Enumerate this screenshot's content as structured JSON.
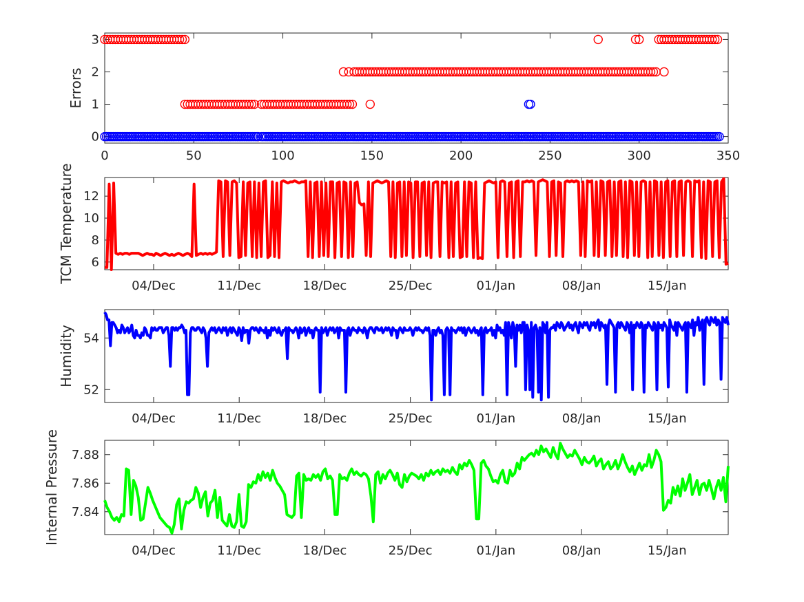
{
  "chart_data": [
    {
      "type": "scatter",
      "xlabel": "",
      "ylabel": "Errors",
      "xlim": [
        0,
        350
      ],
      "ylim": [
        -0.2,
        3.2
      ],
      "xticks": [
        0,
        50,
        100,
        150,
        200,
        250,
        300,
        350
      ],
      "yticks": [
        0,
        1,
        2,
        3
      ],
      "marker": "circle",
      "series": [
        {
          "color": "#ff0000",
          "segments": [
            {
              "x_start": 0,
              "x_end": 45,
              "step": 1.5,
              "y": 3
            },
            {
              "x_start": 45,
              "x_end": 85,
              "step": 1.5,
              "y": 1
            },
            {
              "x_start": 88,
              "x_end": 140,
              "step": 1.5,
              "y": 1
            },
            {
              "x_start": 140,
              "x_end": 310,
              "step": 1.5,
              "y": 2
            },
            {
              "x_start": 311,
              "x_end": 344,
              "step": 1.5,
              "y": 3
            }
          ],
          "points": [
            {
              "x": 134,
              "y": 2
            },
            {
              "x": 137,
              "y": 2
            },
            {
              "x": 149,
              "y": 1
            },
            {
              "x": 277,
              "y": 3
            },
            {
              "x": 298,
              "y": 3
            },
            {
              "x": 300,
              "y": 3
            },
            {
              "x": 314,
              "y": 2
            },
            {
              "x": 1,
              "y": 0
            },
            {
              "x": 86,
              "y": 0
            }
          ]
        },
        {
          "color": "#0000ff",
          "segments": [
            {
              "x_start": 0,
              "x_end": 86,
              "step": 1.0,
              "y": 0
            },
            {
              "x_start": 88,
              "x_end": 345,
              "step": 1.0,
              "y": 0
            }
          ],
          "points": [
            {
              "x": 238,
              "y": 1
            },
            {
              "x": 239,
              "y": 1
            }
          ]
        }
      ]
    },
    {
      "type": "line",
      "ylabel": "TCM Temperature",
      "color": "#ff0000",
      "x_date_range": [
        "2017-11-30",
        "2018-01-20"
      ],
      "xlim": [
        "2017-11-30",
        "2018-01-20"
      ],
      "ylim": [
        5.3,
        13.7
      ],
      "yticks": [
        6,
        8,
        10,
        12
      ],
      "xticks": [
        "04/Dec",
        "11/Dec",
        "18/Dec",
        "25/Dec",
        "01/Jan",
        "08/Jan",
        "15/Jan"
      ],
      "values": [
        5.5,
        5.5,
        13.1,
        5.3,
        13.2,
        6.8,
        6.7,
        6.8,
        6.7,
        6.8,
        6.8,
        6.7,
        6.8,
        6.8,
        6.8,
        6.8,
        6.7,
        6.6,
        6.7,
        6.8,
        6.7,
        6.7,
        6.6,
        6.8,
        6.7,
        6.6,
        6.7,
        6.8,
        6.7,
        6.6,
        6.7,
        6.6,
        6.7,
        6.8,
        6.7,
        6.6,
        6.7,
        6.8,
        6.7,
        6.5,
        13.1,
        6.6,
        6.7,
        6.8,
        6.7,
        6.8,
        6.7,
        6.8,
        6.7,
        6.8,
        6.9,
        13.4,
        13.3,
        6.5,
        13.4,
        13.3,
        6.6,
        13.3,
        13.4,
        13.2,
        6.4,
        6.5,
        13.3,
        6.6,
        13.2,
        13.3,
        6.5,
        13.3,
        6.4,
        13.2,
        6.5,
        13.3,
        13.4,
        6.4,
        6.6,
        13.3,
        6.5,
        13.2,
        6.4,
        13.3,
        13.4,
        13.3,
        13.2,
        13.3,
        13.3,
        13.4,
        13.3,
        13.2,
        13.3,
        13.3,
        13.4,
        6.5,
        13.3,
        6.4,
        13.2,
        13.3,
        6.5,
        13.3,
        6.6,
        13.2,
        6.5,
        13.3,
        13.3,
        6.4,
        13.2,
        13.3,
        6.5,
        13.3,
        13.2,
        6.4,
        13.3,
        6.5,
        13.2,
        13.3,
        11.4,
        11.2,
        11.3,
        6.6,
        13.3,
        6.5,
        13.2,
        13.3,
        13.4,
        13.3,
        13.2,
        13.3,
        13.4,
        13.3,
        6.5,
        13.3,
        6.4,
        13.2,
        13.3,
        6.5,
        13.3,
        6.6,
        13.3,
        13.2,
        6.4,
        13.3,
        13.3,
        6.5,
        13.2,
        13.3,
        6.6,
        13.3,
        6.4,
        13.2,
        13.3,
        13.3,
        6.5,
        13.3,
        13.2,
        13.3,
        6.4,
        13.3,
        6.5,
        13.2,
        13.3,
        6.4,
        6.5,
        13.3,
        6.5,
        13.3,
        13.2,
        6.4,
        13.3,
        6.3,
        6.4,
        6.3,
        13.2,
        13.3,
        13.4,
        13.3,
        13.2,
        13.3,
        6.4,
        13.3,
        13.4,
        13.3,
        6.5,
        13.2,
        13.3,
        6.4,
        13.3,
        13.4,
        6.5,
        13.3,
        13.3,
        13.4,
        13.3,
        13.4,
        13.3,
        6.6,
        13.3,
        13.4,
        13.5,
        13.4,
        13.3,
        6.5,
        13.3,
        13.4,
        6.6,
        13.3,
        13.2,
        6.5,
        13.3,
        13.4,
        13.3,
        13.4,
        13.3,
        13.4,
        13.3,
        6.6,
        13.3,
        6.5,
        13.4,
        13.3,
        13.4,
        6.6,
        13.3,
        6.5,
        13.4,
        13.3,
        6.6,
        13.3,
        13.4,
        6.5,
        13.3,
        6.6,
        13.3,
        13.4,
        6.5,
        13.3,
        6.4,
        13.4,
        13.3,
        6.6,
        13.3,
        6.5,
        13.3,
        13.4,
        13.3,
        6.4,
        13.3,
        6.5,
        13.4,
        13.3,
        6.6,
        13.3,
        6.4,
        13.3,
        13.4,
        6.5,
        13.3,
        13.4,
        6.5,
        13.3,
        13.4,
        6.6,
        13.3,
        13.4,
        13.3,
        6.5,
        13.4,
        13.3,
        13.4,
        6.4,
        13.3,
        6.3,
        13.4,
        13.3,
        6.5,
        13.3,
        13.4,
        6.4,
        13.3,
        13.6,
        5.8,
        5.9
      ]
    },
    {
      "type": "line",
      "ylabel": "Humidity",
      "color": "#0000ff",
      "x_date_range": [
        "2017-11-30",
        "2018-01-20"
      ],
      "xlim": [
        "2017-11-30",
        "2018-01-20"
      ],
      "ylim": [
        51.5,
        55.1
      ],
      "yticks": [
        52,
        54
      ],
      "xticks": [
        "04/Dec",
        "11/Dec",
        "18/Dec",
        "25/Dec",
        "01/Jan",
        "08/Jan",
        "15/Jan"
      ],
      "values": [
        55.0,
        54.9,
        54.7,
        54.7,
        53.7,
        54.6,
        54.6,
        54.5,
        54.4,
        54.2,
        54.3,
        54.2,
        54.5,
        54.4,
        54.2,
        54.3,
        54.4,
        54.2,
        54.3,
        54.5,
        54.1,
        54.0,
        54.3,
        54.1,
        54.1,
        54.0,
        54.2,
        54.1,
        54.4,
        54.3,
        54.1,
        54.1,
        54.0,
        54.4,
        54.3,
        54.4,
        54.3,
        54.3,
        54.4,
        54.4,
        54.4,
        54.2,
        54.3,
        54.4,
        54.4,
        54.1,
        52.9,
        54.4,
        54.4,
        54.3,
        54.4,
        54.3,
        54.4,
        54.4,
        54.5,
        54.4,
        54.2,
        54.3,
        51.8,
        51.8,
        54.2,
        54.4,
        54.4,
        54.3,
        54.3,
        54.4,
        54.4,
        54.3,
        54.2,
        54.4,
        54.3,
        54.0,
        52.9,
        54.2,
        54.3,
        54.4,
        54.3,
        54.4,
        54.2,
        54.3,
        54.4,
        54.3,
        54.2,
        54.4,
        54.3,
        54.4,
        54.1,
        54.3,
        54.4,
        54.2,
        54.4,
        54.3,
        54.2,
        54.1,
        54.4,
        54.3,
        53.9,
        54.4,
        54.2,
        54.3,
        54.3,
        53.8,
        54.3,
        54.4,
        54.4,
        54.3,
        54.4,
        54.3,
        54.2,
        54.4,
        54.3,
        54.3,
        54.2,
        54.4,
        54.0,
        54.3,
        54.1,
        54.4,
        54.3,
        54.4,
        54.3,
        54.2,
        54.4,
        54.2,
        54.1,
        54.3,
        54.3,
        54.4,
        53.2,
        54.4,
        54.3,
        54.3,
        54.2,
        54.3,
        54.4,
        54.3,
        54.0,
        54.4,
        54.2,
        54.3,
        54.4,
        54.1,
        54.3,
        54.4,
        54.2,
        54.3,
        54.0,
        54.3,
        54.4,
        54.3,
        54.3,
        51.9,
        54.4,
        54.2,
        54.3,
        54.4,
        54.1,
        54.3,
        54.4,
        54.3,
        54.4,
        54.2,
        54.3,
        54.4,
        54.0,
        54.4,
        54.3,
        54.3,
        54.3,
        51.9,
        54.3,
        54.4,
        54.1,
        54.3,
        54.4,
        54.3,
        54.3,
        54.2,
        54.4,
        54.3,
        54.3,
        54.2,
        54.4,
        54.3,
        54.0,
        54.3,
        54.4,
        54.4,
        54.3,
        54.2,
        54.4,
        54.4,
        54.3,
        54.3,
        54.4,
        54.2,
        54.3,
        54.4,
        54.3,
        54.4,
        54.3,
        54.1,
        54.4,
        54.3,
        54.3,
        54.0,
        54.3,
        54.4,
        54.3,
        54.2,
        54.4,
        54.3,
        54.3,
        54.3,
        54.4,
        54.3,
        54.1,
        54.3,
        54.4,
        54.3,
        54.4,
        54.3,
        54.3,
        54.2,
        54.3,
        54.4,
        54.3,
        54.4,
        54.1,
        51.6,
        54.3,
        54.3,
        54.1,
        54.3,
        54.4,
        54.2,
        54.3,
        54.1,
        51.8,
        54.3,
        54.4,
        54.3,
        51.8,
        54.4,
        54.3,
        54.3,
        54.2,
        54.3,
        54.4,
        54.3,
        54.4,
        54.2,
        54.4,
        54.1,
        54.3,
        54.4,
        54.3,
        54.2,
        54.3,
        54.4,
        54.2,
        54.3,
        54.1,
        54.3,
        54.4,
        51.8,
        54.3,
        54.4,
        54.2,
        54.3,
        54.3,
        54.4,
        54.1,
        54.3,
        54.0,
        54.5,
        54.3,
        54.4,
        54.2,
        54.3,
        54.1,
        54.6,
        51.8,
        54.6,
        54.4,
        54.0,
        54.6,
        54.4,
        52.9,
        54.5,
        54.3,
        54.5,
        54.2,
        54.6,
        54.6,
        52.0,
        54.5,
        54.3,
        52.0,
        54.6,
        51.7,
        54.4,
        54.5,
        54.3,
        51.9,
        54.4,
        51.6,
        54.6,
        54.5,
        54.2,
        54.6,
        51.7,
        54.3,
        54.4,
        54.4,
        54.5,
        54.3,
        54.6,
        54.5,
        54.4,
        54.6,
        54.5,
        54.3,
        54.4,
        54.5,
        54.6,
        54.4,
        54.5,
        54.3,
        54.5,
        54.6,
        54.4,
        54.2,
        54.6,
        54.5,
        54.4,
        54.6,
        54.5,
        54.6,
        54.4,
        54.3,
        54.6,
        54.5,
        54.6,
        54.4,
        54.6,
        54.7,
        54.3,
        54.6,
        54.5,
        54.4,
        54.5,
        52.2,
        54.5,
        54.7,
        54.6,
        54.5,
        54.4,
        51.9,
        54.5,
        54.6,
        54.4,
        54.6,
        54.5,
        54.4,
        54.3,
        54.6,
        54.5,
        54.2,
        54.6,
        52.0,
        54.5,
        54.4,
        54.6,
        54.5,
        54.4,
        54.6,
        54.5,
        51.9,
        54.5,
        54.4,
        54.6,
        54.5,
        54.4,
        54.3,
        54.6,
        54.5,
        52.0,
        54.6,
        54.4,
        54.5,
        54.3,
        54.6,
        54.5,
        54.4,
        52.1,
        54.7,
        54.5,
        54.4,
        54.3,
        54.6,
        54.1,
        54.6,
        54.5,
        54.4,
        54.3,
        54.5,
        54.6,
        51.9,
        54.6,
        54.5,
        54.4,
        54.7,
        54.1,
        54.6,
        54.5,
        54.8,
        54.3,
        54.6,
        54.7,
        52.2,
        54.7,
        54.8,
        54.6,
        54.5,
        54.8,
        54.7,
        54.6,
        54.8,
        54.5,
        54.7,
        54.6,
        52.4,
        54.8,
        54.7,
        54.6,
        54.8,
        54.5
      ]
    },
    {
      "type": "line",
      "ylabel": "Internal Pressure",
      "color": "#00ff00",
      "x_date_range": [
        "2017-11-30",
        "2018-01-20"
      ],
      "xlim": [
        "2017-11-30",
        "2018-01-20"
      ],
      "ylim": [
        7.824,
        7.89
      ],
      "yticks": [
        7.84,
        7.86,
        7.88
      ],
      "xticks": [
        "04/Dec",
        "11/Dec",
        "18/Dec",
        "25/Dec",
        "01/Jan",
        "08/Jan",
        "15/Jan"
      ],
      "values": [
        7.848,
        7.843,
        7.84,
        7.836,
        7.834,
        7.836,
        7.833,
        7.838,
        7.837,
        7.87,
        7.869,
        7.838,
        7.862,
        7.858,
        7.85,
        7.834,
        7.835,
        7.846,
        7.857,
        7.853,
        7.848,
        7.844,
        7.84,
        7.836,
        7.834,
        7.832,
        7.83,
        7.829,
        7.825,
        7.831,
        7.845,
        7.849,
        7.828,
        7.841,
        7.847,
        7.846,
        7.848,
        7.849,
        7.857,
        7.853,
        7.843,
        7.85,
        7.854,
        7.837,
        7.846,
        7.848,
        7.855,
        7.836,
        7.85,
        7.834,
        7.832,
        7.83,
        7.838,
        7.83,
        7.829,
        7.833,
        7.852,
        7.83,
        7.829,
        7.833,
        7.859,
        7.857,
        7.861,
        7.86,
        7.866,
        7.862,
        7.868,
        7.864,
        7.867,
        7.862,
        7.869,
        7.864,
        7.86,
        7.858,
        7.855,
        7.852,
        7.838,
        7.837,
        7.836,
        7.838,
        7.865,
        7.867,
        7.836,
        7.866,
        7.862,
        7.863,
        7.862,
        7.866,
        7.864,
        7.866,
        7.862,
        7.868,
        7.87,
        7.863,
        7.865,
        7.862,
        7.838,
        7.838,
        7.866,
        7.863,
        7.864,
        7.862,
        7.867,
        7.87,
        7.866,
        7.868,
        7.866,
        7.865,
        7.867,
        7.866,
        7.863,
        7.851,
        7.833,
        7.866,
        7.868,
        7.86,
        7.866,
        7.863,
        7.867,
        7.869,
        7.866,
        7.862,
        7.867,
        7.859,
        7.857,
        7.866,
        7.861,
        7.865,
        7.867,
        7.866,
        7.865,
        7.863,
        7.866,
        7.862,
        7.867,
        7.865,
        7.869,
        7.866,
        7.868,
        7.869,
        7.866,
        7.87,
        7.868,
        7.869,
        7.867,
        7.871,
        7.868,
        7.866,
        7.873,
        7.87,
        7.874,
        7.872,
        7.876,
        7.873,
        7.869,
        7.835,
        7.835,
        7.874,
        7.876,
        7.872,
        7.87,
        7.865,
        7.861,
        7.862,
        7.86,
        7.866,
        7.869,
        7.861,
        7.86,
        7.869,
        7.865,
        7.867,
        7.874,
        7.87,
        7.878,
        7.876,
        7.878,
        7.88,
        7.881,
        7.879,
        7.883,
        7.88,
        7.886,
        7.882,
        7.884,
        7.881,
        7.878,
        7.885,
        7.88,
        7.877,
        7.888,
        7.884,
        7.881,
        7.878,
        7.88,
        7.879,
        7.883,
        7.88,
        7.877,
        7.873,
        7.878,
        7.875,
        7.874,
        7.876,
        7.879,
        7.872,
        7.875,
        7.877,
        7.87,
        7.873,
        7.875,
        7.87,
        7.872,
        7.876,
        7.87,
        7.874,
        7.88,
        7.875,
        7.871,
        7.868,
        7.872,
        7.866,
        7.87,
        7.874,
        7.869,
        7.873,
        7.872,
        7.88,
        7.871,
        7.876,
        7.883,
        7.88,
        7.875,
        7.841,
        7.843,
        7.848,
        7.846,
        7.857,
        7.852,
        7.858,
        7.851,
        7.863,
        7.855,
        7.86,
        7.866,
        7.852,
        7.857,
        7.862,
        7.852,
        7.859,
        7.86,
        7.855,
        7.862,
        7.856,
        7.849,
        7.857,
        7.862,
        7.855,
        7.864,
        7.847,
        7.872
      ]
    }
  ]
}
